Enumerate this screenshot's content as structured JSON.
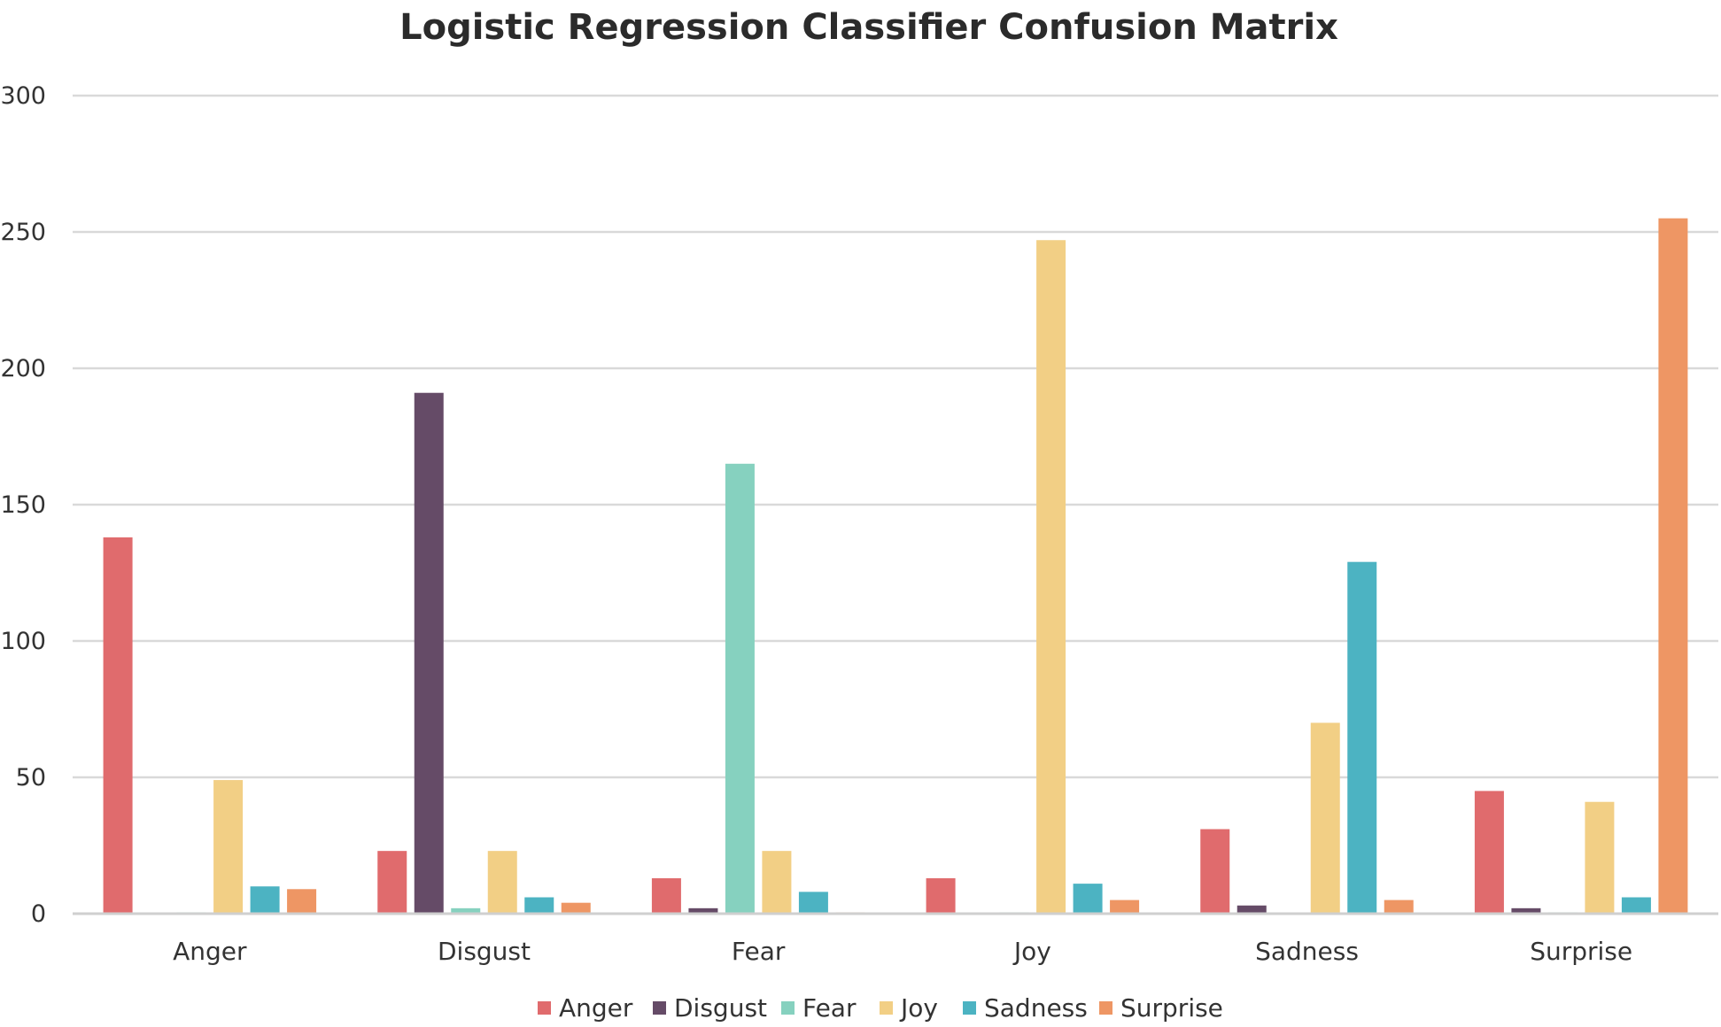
{
  "chart_data": {
    "type": "bar",
    "title": "Logistic Regression Classifier Confusion Matrix",
    "xlabel": "",
    "ylabel": "",
    "ylim": [
      0,
      300
    ],
    "yticks": [
      "0",
      "50",
      "100",
      "150",
      "200",
      "250",
      "300"
    ],
    "grid": true,
    "legend_position": "bottom",
    "categories": [
      "Anger",
      "Disgust",
      "Fear",
      "Joy",
      "Sadness",
      "Surprise"
    ],
    "series": [
      {
        "name": "Anger",
        "color": "#e06b6d",
        "values": [
          138,
          23,
          13,
          13,
          31,
          45
        ]
      },
      {
        "name": "Disgust",
        "color": "#654b67",
        "values": [
          0,
          191,
          2,
          0,
          3,
          2
        ]
      },
      {
        "name": "Fear",
        "color": "#86d1bf",
        "values": [
          0.5,
          2,
          165,
          0.5,
          0,
          0.5
        ]
      },
      {
        "name": "Joy",
        "color": "#f2cf85",
        "values": [
          49,
          23,
          23,
          247,
          70,
          41
        ]
      },
      {
        "name": "Sadness",
        "color": "#4cb3c2",
        "values": [
          10,
          6,
          8,
          11,
          129,
          6
        ]
      },
      {
        "name": "Surprise",
        "color": "#ee9664",
        "values": [
          9,
          4,
          0.5,
          5,
          5,
          255
        ]
      }
    ]
  }
}
